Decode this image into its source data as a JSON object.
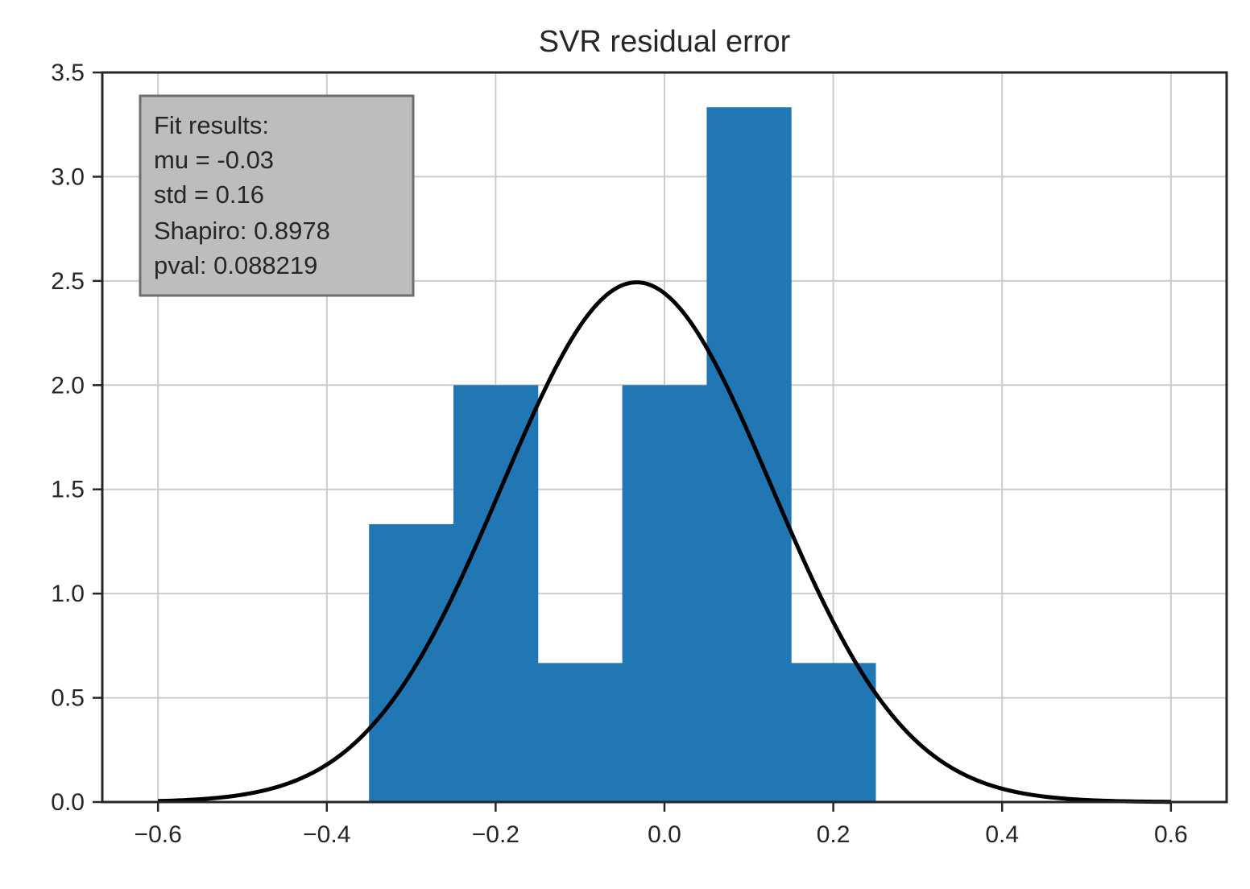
{
  "chart_data": {
    "type": "bar",
    "title": "SVR residual error",
    "xlabel": "",
    "ylabel": "",
    "xlim": [
      -0.666,
      0.666
    ],
    "ylim": [
      0,
      3.5
    ],
    "grid": true,
    "xticks": [
      -0.6,
      -0.4,
      -0.2,
      0.0,
      0.2,
      0.4,
      0.6
    ],
    "xtick_labels": [
      "−0.6",
      "−0.4",
      "−0.2",
      "0.0",
      "0.2",
      "0.4",
      "0.6"
    ],
    "yticks": [
      0.0,
      0.5,
      1.0,
      1.5,
      2.0,
      2.5,
      3.0,
      3.5
    ],
    "ytick_labels": [
      "0.0",
      "0.5",
      "1.0",
      "1.5",
      "2.0",
      "2.5",
      "3.0",
      "3.5"
    ],
    "histogram": {
      "bin_edges": [
        -0.35,
        -0.25,
        -0.15,
        -0.05,
        0.05,
        0.15,
        0.25
      ],
      "values": [
        1.333,
        2.0,
        0.667,
        2.0,
        3.333,
        0.667
      ],
      "color": "#2177b4"
    },
    "fit_curve": {
      "type": "normal_pdf",
      "mu": -0.033,
      "std": 0.16,
      "x_range": [
        -0.6,
        0.6
      ],
      "color": "#000000"
    },
    "annotation": {
      "lines": [
        "Fit results:",
        "mu = -0.03",
        "std = 0.16",
        "Shapiro: 0.8978",
        "pval: 0.088219"
      ],
      "box_color": "#bdbdbd",
      "border_color": "#6e6e6e"
    }
  }
}
